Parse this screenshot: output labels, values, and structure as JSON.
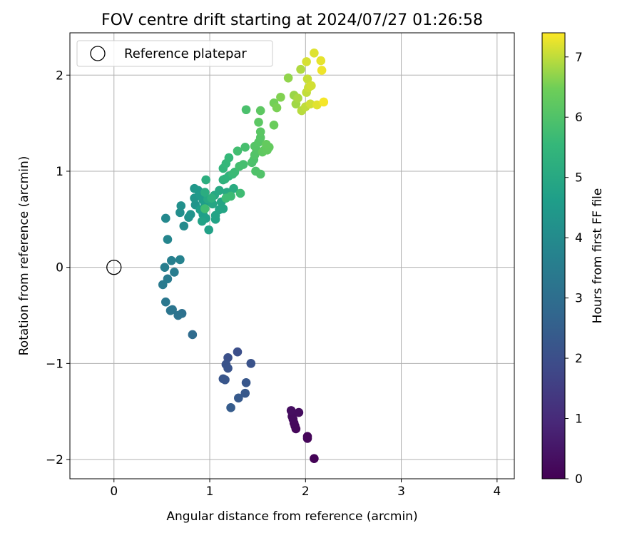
{
  "chart_data": {
    "type": "scatter",
    "title": "FOV centre drift starting at 2024/07/27 01:26:58",
    "xlabel": "Angular distance from reference (arcmin)",
    "ylabel": "Rotation from reference (arcmin)",
    "xlim": [
      -0.46,
      4.18
    ],
    "ylim": [
      -2.2,
      2.44
    ],
    "xticks": [
      0,
      1,
      2,
      3,
      4
    ],
    "yticks": [
      -2,
      -1,
      0,
      1,
      2
    ],
    "grid": true,
    "legend": {
      "placement": "top-left",
      "entries": [
        "Reference platepar"
      ]
    },
    "reference": {
      "name": "Reference platepar",
      "x": 0,
      "y": 0,
      "marker": "open-circle"
    },
    "colorbar": {
      "label": "Hours from first FF file",
      "colormap": "viridis",
      "min": 0,
      "max": 7.4,
      "ticks": [
        0,
        1,
        2,
        3,
        4,
        5,
        6,
        7
      ]
    },
    "points": [
      {
        "x": 2.09,
        "y": -1.99,
        "c": 0.05
      },
      {
        "x": 2.02,
        "y": -1.76,
        "c": 0.1
      },
      {
        "x": 2.02,
        "y": -1.78,
        "c": 0.12
      },
      {
        "x": 1.9,
        "y": -1.68,
        "c": 0.15
      },
      {
        "x": 1.89,
        "y": -1.65,
        "c": 0.18
      },
      {
        "x": 1.88,
        "y": -1.62,
        "c": 0.2
      },
      {
        "x": 1.87,
        "y": -1.58,
        "c": 0.22
      },
      {
        "x": 1.86,
        "y": -1.55,
        "c": 0.25
      },
      {
        "x": 1.93,
        "y": -1.51,
        "c": 0.28
      },
      {
        "x": 1.85,
        "y": -1.49,
        "c": 0.3
      },
      {
        "x": 1.29,
        "y": -0.88,
        "c": 2.0
      },
      {
        "x": 1.19,
        "y": -0.94,
        "c": 2.05
      },
      {
        "x": 1.43,
        "y": -1.0,
        "c": 2.1
      },
      {
        "x": 1.17,
        "y": -1.01,
        "c": 2.12
      },
      {
        "x": 1.19,
        "y": -1.05,
        "c": 2.15
      },
      {
        "x": 1.14,
        "y": -1.16,
        "c": 2.2
      },
      {
        "x": 1.16,
        "y": -1.17,
        "c": 2.22
      },
      {
        "x": 1.38,
        "y": -1.2,
        "c": 2.25
      },
      {
        "x": 1.37,
        "y": -1.31,
        "c": 2.3
      },
      {
        "x": 1.3,
        "y": -1.36,
        "c": 2.35
      },
      {
        "x": 1.22,
        "y": -1.46,
        "c": 2.4
      },
      {
        "x": 0.82,
        "y": -0.7,
        "c": 2.9
      },
      {
        "x": 0.71,
        "y": -0.48,
        "c": 3.1
      },
      {
        "x": 0.67,
        "y": -0.5,
        "c": 3.15
      },
      {
        "x": 0.61,
        "y": -0.44,
        "c": 3.2
      },
      {
        "x": 0.59,
        "y": -0.45,
        "c": 3.25
      },
      {
        "x": 0.54,
        "y": -0.36,
        "c": 3.3
      },
      {
        "x": 0.51,
        "y": -0.18,
        "c": 3.4
      },
      {
        "x": 0.56,
        "y": -0.12,
        "c": 3.45
      },
      {
        "x": 0.63,
        "y": -0.05,
        "c": 3.5
      },
      {
        "x": 0.53,
        "y": 0.0,
        "c": 3.55
      },
      {
        "x": 0.6,
        "y": 0.07,
        "c": 3.6
      },
      {
        "x": 0.69,
        "y": 0.08,
        "c": 3.7
      },
      {
        "x": 0.56,
        "y": 0.29,
        "c": 3.8
      },
      {
        "x": 0.54,
        "y": 0.51,
        "c": 3.9
      },
      {
        "x": 0.73,
        "y": 0.43,
        "c": 4.0
      },
      {
        "x": 0.69,
        "y": 0.57,
        "c": 4.1
      },
      {
        "x": 0.7,
        "y": 0.64,
        "c": 4.15
      },
      {
        "x": 0.78,
        "y": 0.52,
        "c": 4.2
      },
      {
        "x": 0.8,
        "y": 0.55,
        "c": 4.25
      },
      {
        "x": 0.85,
        "y": 0.65,
        "c": 4.3
      },
      {
        "x": 0.84,
        "y": 0.72,
        "c": 4.35
      },
      {
        "x": 0.84,
        "y": 0.82,
        "c": 4.4
      },
      {
        "x": 0.88,
        "y": 0.8,
        "c": 4.45
      },
      {
        "x": 0.9,
        "y": 0.75,
        "c": 4.5
      },
      {
        "x": 0.93,
        "y": 0.7,
        "c": 4.55
      },
      {
        "x": 0.95,
        "y": 0.66,
        "c": 4.6
      },
      {
        "x": 0.9,
        "y": 0.6,
        "c": 4.62
      },
      {
        "x": 0.93,
        "y": 0.55,
        "c": 4.65
      },
      {
        "x": 0.96,
        "y": 0.51,
        "c": 4.7
      },
      {
        "x": 0.99,
        "y": 0.39,
        "c": 4.75
      },
      {
        "x": 0.92,
        "y": 0.48,
        "c": 4.78
      },
      {
        "x": 1.06,
        "y": 0.5,
        "c": 4.8
      },
      {
        "x": 1.06,
        "y": 0.54,
        "c": 4.82
      },
      {
        "x": 1.1,
        "y": 0.6,
        "c": 4.85
      },
      {
        "x": 1.14,
        "y": 0.61,
        "c": 4.88
      },
      {
        "x": 1.12,
        "y": 0.68,
        "c": 4.9
      },
      {
        "x": 1.03,
        "y": 0.66,
        "c": 4.92
      },
      {
        "x": 0.98,
        "y": 0.71,
        "c": 4.95
      },
      {
        "x": 1.05,
        "y": 0.75,
        "c": 4.98
      },
      {
        "x": 1.1,
        "y": 0.8,
        "c": 5.0
      },
      {
        "x": 1.18,
        "y": 0.78,
        "c": 5.05
      },
      {
        "x": 1.25,
        "y": 0.82,
        "c": 5.1
      },
      {
        "x": 0.95,
        "y": 0.78,
        "c": 5.15
      },
      {
        "x": 0.96,
        "y": 0.91,
        "c": 5.2
      },
      {
        "x": 1.02,
        "y": 0.72,
        "c": 5.25
      },
      {
        "x": 1.14,
        "y": 0.91,
        "c": 5.3
      },
      {
        "x": 1.16,
        "y": 0.92,
        "c": 5.35
      },
      {
        "x": 1.2,
        "y": 0.95,
        "c": 5.4
      },
      {
        "x": 1.14,
        "y": 1.03,
        "c": 5.45
      },
      {
        "x": 1.17,
        "y": 1.08,
        "c": 5.5
      },
      {
        "x": 1.2,
        "y": 1.14,
        "c": 5.55
      },
      {
        "x": 1.24,
        "y": 0.97,
        "c": 5.6
      },
      {
        "x": 1.26,
        "y": 0.99,
        "c": 5.65
      },
      {
        "x": 1.22,
        "y": 0.74,
        "c": 5.68
      },
      {
        "x": 1.17,
        "y": 0.72,
        "c": 5.7
      },
      {
        "x": 1.32,
        "y": 0.77,
        "c": 5.72
      },
      {
        "x": 0.95,
        "y": 0.61,
        "c": 5.75
      },
      {
        "x": 1.29,
        "y": 1.21,
        "c": 5.78
      },
      {
        "x": 1.31,
        "y": 1.05,
        "c": 5.8
      },
      {
        "x": 1.35,
        "y": 1.07,
        "c": 5.82
      },
      {
        "x": 1.37,
        "y": 1.25,
        "c": 5.85
      },
      {
        "x": 1.38,
        "y": 1.64,
        "c": 5.9
      },
      {
        "x": 1.44,
        "y": 1.09,
        "c": 5.92
      },
      {
        "x": 1.46,
        "y": 1.12,
        "c": 5.95
      },
      {
        "x": 1.48,
        "y": 1.0,
        "c": 5.98
      },
      {
        "x": 1.53,
        "y": 0.97,
        "c": 6.0
      },
      {
        "x": 1.47,
        "y": 1.17,
        "c": 6.02
      },
      {
        "x": 1.49,
        "y": 1.22,
        "c": 6.05
      },
      {
        "x": 1.47,
        "y": 1.26,
        "c": 6.08
      },
      {
        "x": 1.51,
        "y": 1.3,
        "c": 6.1
      },
      {
        "x": 1.53,
        "y": 1.35,
        "c": 6.12
      },
      {
        "x": 1.53,
        "y": 1.41,
        "c": 6.15
      },
      {
        "x": 1.51,
        "y": 1.51,
        "c": 6.18
      },
      {
        "x": 1.53,
        "y": 1.63,
        "c": 6.2
      },
      {
        "x": 1.55,
        "y": 1.2,
        "c": 6.22
      },
      {
        "x": 1.57,
        "y": 1.22,
        "c": 6.25
      },
      {
        "x": 1.6,
        "y": 1.22,
        "c": 6.28
      },
      {
        "x": 1.62,
        "y": 1.25,
        "c": 6.3
      },
      {
        "x": 1.59,
        "y": 1.28,
        "c": 6.32
      },
      {
        "x": 1.67,
        "y": 1.48,
        "c": 6.4
      },
      {
        "x": 1.67,
        "y": 1.71,
        "c": 6.5
      },
      {
        "x": 1.7,
        "y": 1.66,
        "c": 6.55
      },
      {
        "x": 1.74,
        "y": 1.77,
        "c": 6.6
      },
      {
        "x": 1.82,
        "y": 1.97,
        "c": 6.7
      },
      {
        "x": 1.88,
        "y": 1.79,
        "c": 6.75
      },
      {
        "x": 1.9,
        "y": 1.7,
        "c": 6.8
      },
      {
        "x": 1.92,
        "y": 1.76,
        "c": 6.85
      },
      {
        "x": 1.95,
        "y": 2.06,
        "c": 6.9
      },
      {
        "x": 1.96,
        "y": 1.63,
        "c": 6.95
      },
      {
        "x": 2.0,
        "y": 1.67,
        "c": 7.0
      },
      {
        "x": 2.01,
        "y": 1.82,
        "c": 7.02
      },
      {
        "x": 2.02,
        "y": 1.96,
        "c": 7.05
      },
      {
        "x": 2.03,
        "y": 1.87,
        "c": 7.08
      },
      {
        "x": 2.05,
        "y": 1.7,
        "c": 7.1
      },
      {
        "x": 2.06,
        "y": 1.89,
        "c": 7.12
      },
      {
        "x": 2.01,
        "y": 2.14,
        "c": 7.15
      },
      {
        "x": 2.09,
        "y": 2.23,
        "c": 7.2
      },
      {
        "x": 2.12,
        "y": 1.69,
        "c": 7.22
      },
      {
        "x": 2.16,
        "y": 2.15,
        "c": 7.25
      },
      {
        "x": 2.17,
        "y": 2.05,
        "c": 7.3
      },
      {
        "x": 2.19,
        "y": 1.72,
        "c": 7.35
      }
    ]
  }
}
